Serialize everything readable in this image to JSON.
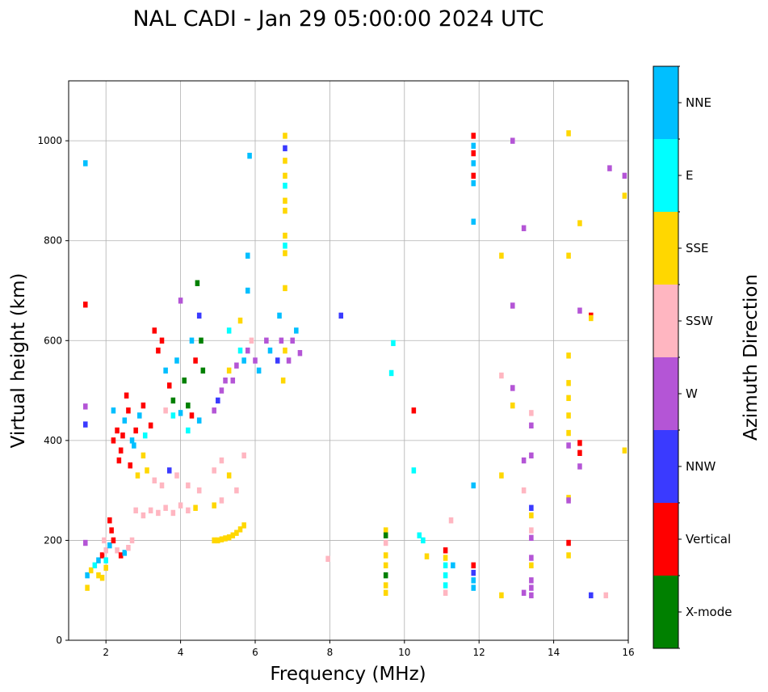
{
  "chart_data": {
    "type": "scatter",
    "title": "NAL CADI - Jan 29 05:00:00 2024 UTC",
    "xlabel": "Frequency (MHz)",
    "ylabel": "Virtual height (km)",
    "xlim": [
      1,
      16
    ],
    "ylim": [
      0,
      1120
    ],
    "xticks": [
      2,
      4,
      6,
      8,
      10,
      12,
      14,
      16
    ],
    "yticks": [
      0,
      200,
      400,
      600,
      800,
      1000
    ],
    "grid": true,
    "colorbar": {
      "label": "Azimuth Direction",
      "categories": [
        {
          "name": "X-mode",
          "color": "#008000"
        },
        {
          "name": "Vertical",
          "color": "#ff0000"
        },
        {
          "name": "NNW",
          "color": "#3a3aff"
        },
        {
          "name": "W",
          "color": "#b455d6"
        },
        {
          "name": "SSW",
          "color": "#ffb6c1"
        },
        {
          "name": "SSE",
          "color": "#ffd700"
        },
        {
          "name": "E",
          "color": "#00ffff"
        },
        {
          "name": "NNE",
          "color": "#00bfff"
        }
      ]
    },
    "points": [
      [
        1.45,
        672,
        "Vertical"
      ],
      [
        1.45,
        955,
        "NNE"
      ],
      [
        1.45,
        468,
        "W"
      ],
      [
        1.45,
        432,
        "NNW"
      ],
      [
        1.45,
        195,
        "W"
      ],
      [
        1.5,
        130,
        "NNE"
      ],
      [
        1.5,
        105,
        "SSE"
      ],
      [
        1.6,
        140,
        "SSE"
      ],
      [
        1.7,
        150,
        "E"
      ],
      [
        1.8,
        160,
        "NNE"
      ],
      [
        1.9,
        170,
        "Vertical"
      ],
      [
        2.0,
        180,
        "SSW"
      ],
      [
        2.0,
        145,
        "SSE"
      ],
      [
        2.1,
        190,
        "NNE"
      ],
      [
        2.2,
        200,
        "Vertical"
      ],
      [
        2.3,
        180,
        "SSW"
      ],
      [
        2.4,
        170,
        "Vertical"
      ],
      [
        2.5,
        175,
        "NNE"
      ],
      [
        2.6,
        185,
        "SSW"
      ],
      [
        2.1,
        240,
        "Vertical"
      ],
      [
        2.15,
        220,
        "Vertical"
      ],
      [
        1.8,
        130,
        "SSE"
      ],
      [
        1.9,
        125,
        "SSE"
      ],
      [
        2.0,
        160,
        "E"
      ],
      [
        1.95,
        200,
        "SSW"
      ],
      [
        2.2,
        400,
        "Vertical"
      ],
      [
        2.3,
        420,
        "Vertical"
      ],
      [
        2.4,
        380,
        "Vertical"
      ],
      [
        2.5,
        440,
        "NNE"
      ],
      [
        2.6,
        460,
        "Vertical"
      ],
      [
        2.7,
        400,
        "NNE"
      ],
      [
        2.8,
        420,
        "Vertical"
      ],
      [
        2.9,
        450,
        "NNE"
      ],
      [
        3.0,
        470,
        "Vertical"
      ],
      [
        2.2,
        460,
        "NNE"
      ],
      [
        2.35,
        360,
        "Vertical"
      ],
      [
        2.55,
        490,
        "Vertical"
      ],
      [
        2.65,
        350,
        "Vertical"
      ],
      [
        2.75,
        390,
        "NNE"
      ],
      [
        2.85,
        330,
        "SSE"
      ],
      [
        2.45,
        410,
        "Vertical"
      ],
      [
        3.05,
        410,
        "E"
      ],
      [
        3.2,
        430,
        "Vertical"
      ],
      [
        3.5,
        600,
        "Vertical"
      ],
      [
        3.6,
        540,
        "NNE"
      ],
      [
        3.7,
        510,
        "Vertical"
      ],
      [
        3.8,
        480,
        "X-mode"
      ],
      [
        3.9,
        560,
        "NNE"
      ],
      [
        4.0,
        680,
        "W"
      ],
      [
        4.1,
        520,
        "X-mode"
      ],
      [
        4.2,
        470,
        "X-mode"
      ],
      [
        4.3,
        600,
        "NNE"
      ],
      [
        4.4,
        560,
        "Vertical"
      ],
      [
        4.45,
        715,
        "X-mode"
      ],
      [
        4.5,
        650,
        "NNW"
      ],
      [
        4.55,
        600,
        "X-mode"
      ],
      [
        4.6,
        540,
        "X-mode"
      ],
      [
        3.4,
        580,
        "Vertical"
      ],
      [
        3.3,
        620,
        "Vertical"
      ],
      [
        3.6,
        460,
        "SSW"
      ],
      [
        3.8,
        450,
        "E"
      ],
      [
        4.0,
        455,
        "NNE"
      ],
      [
        4.3,
        450,
        "Vertical"
      ],
      [
        4.5,
        440,
        "NNE"
      ],
      [
        4.2,
        420,
        "E"
      ],
      [
        4.9,
        460,
        "W"
      ],
      [
        5.0,
        480,
        "NNW"
      ],
      [
        5.1,
        500,
        "W"
      ],
      [
        5.2,
        520,
        "W"
      ],
      [
        5.3,
        540,
        "SSE"
      ],
      [
        5.4,
        520,
        "W"
      ],
      [
        5.5,
        550,
        "W"
      ],
      [
        5.6,
        580,
        "E"
      ],
      [
        5.7,
        560,
        "NNE"
      ],
      [
        5.8,
        580,
        "W"
      ],
      [
        5.9,
        600,
        "SSW"
      ],
      [
        6.0,
        560,
        "W"
      ],
      [
        6.1,
        540,
        "NNE"
      ],
      [
        6.3,
        600,
        "W"
      ],
      [
        6.4,
        580,
        "NNE"
      ],
      [
        6.6,
        560,
        "NNW"
      ],
      [
        6.7,
        600,
        "W"
      ],
      [
        6.8,
        580,
        "SSE"
      ],
      [
        6.9,
        560,
        "W"
      ],
      [
        7.0,
        600,
        "W"
      ],
      [
        7.1,
        620,
        "NNE"
      ],
      [
        7.2,
        575,
        "W"
      ],
      [
        8.3,
        650,
        "NNW"
      ],
      [
        6.65,
        650,
        "NNE"
      ],
      [
        6.75,
        520,
        "SSE"
      ],
      [
        5.8,
        700,
        "NNE"
      ],
      [
        5.8,
        770,
        "NNE"
      ],
      [
        5.85,
        970,
        "NNE"
      ],
      [
        5.6,
        640,
        "SSE"
      ],
      [
        5.3,
        620,
        "E"
      ],
      [
        3.0,
        370,
        "SSE"
      ],
      [
        3.1,
        340,
        "SSE"
      ],
      [
        3.3,
        320,
        "SSW"
      ],
      [
        3.5,
        310,
        "SSW"
      ],
      [
        3.7,
        340,
        "NNW"
      ],
      [
        3.9,
        330,
        "SSW"
      ],
      [
        4.2,
        310,
        "SSW"
      ],
      [
        4.5,
        300,
        "SSW"
      ],
      [
        4.9,
        340,
        "SSW"
      ],
      [
        5.1,
        360,
        "SSW"
      ],
      [
        5.3,
        330,
        "SSE"
      ],
      [
        5.5,
        300,
        "SSW"
      ],
      [
        5.7,
        370,
        "SSW"
      ],
      [
        5.1,
        280,
        "SSW"
      ],
      [
        4.9,
        270,
        "SSE"
      ],
      [
        2.8,
        260,
        "SSW"
      ],
      [
        3.0,
        250,
        "SSW"
      ],
      [
        3.2,
        260,
        "SSW"
      ],
      [
        3.4,
        255,
        "SSW"
      ],
      [
        3.6,
        265,
        "SSW"
      ],
      [
        3.8,
        255,
        "SSW"
      ],
      [
        4.0,
        270,
        "SSW"
      ],
      [
        4.2,
        260,
        "SSW"
      ],
      [
        4.4,
        265,
        "SSE"
      ],
      [
        2.7,
        200,
        "SSW"
      ],
      [
        4.9,
        200,
        "SSE"
      ],
      [
        5.0,
        200,
        "SSE"
      ],
      [
        5.1,
        202,
        "SSE"
      ],
      [
        5.2,
        204,
        "SSE"
      ],
      [
        5.3,
        206,
        "SSE"
      ],
      [
        5.4,
        210,
        "SSE"
      ],
      [
        5.5,
        215,
        "SSE"
      ],
      [
        5.6,
        222,
        "SSE"
      ],
      [
        5.7,
        230,
        "SSE"
      ],
      [
        7.95,
        163,
        "SSW"
      ],
      [
        6.8,
        1010,
        "SSE"
      ],
      [
        6.8,
        985,
        "NNW"
      ],
      [
        6.8,
        960,
        "SSE"
      ],
      [
        6.8,
        930,
        "SSE"
      ],
      [
        6.8,
        910,
        "E"
      ],
      [
        6.8,
        880,
        "SSE"
      ],
      [
        6.8,
        860,
        "SSE"
      ],
      [
        6.8,
        810,
        "SSE"
      ],
      [
        6.8,
        790,
        "E"
      ],
      [
        6.8,
        775,
        "SSE"
      ],
      [
        6.8,
        705,
        "SSE"
      ],
      [
        9.5,
        220,
        "SSE"
      ],
      [
        9.5,
        210,
        "X-mode"
      ],
      [
        9.5,
        195,
        "SSW"
      ],
      [
        9.5,
        170,
        "SSE"
      ],
      [
        9.5,
        150,
        "SSE"
      ],
      [
        9.5,
        130,
        "X-mode"
      ],
      [
        9.5,
        110,
        "SSE"
      ],
      [
        9.5,
        95,
        "SSE"
      ],
      [
        9.7,
        595,
        "E"
      ],
      [
        9.65,
        535,
        "E"
      ],
      [
        10.25,
        460,
        "Vertical"
      ],
      [
        10.25,
        340,
        "E"
      ],
      [
        10.4,
        210,
        "E"
      ],
      [
        10.5,
        200,
        "E"
      ],
      [
        10.6,
        168,
        "SSE"
      ],
      [
        11.1,
        180,
        "Vertical"
      ],
      [
        11.1,
        165,
        "SSE"
      ],
      [
        11.1,
        150,
        "E"
      ],
      [
        11.1,
        130,
        "E"
      ],
      [
        11.1,
        110,
        "E"
      ],
      [
        11.1,
        95,
        "SSW"
      ],
      [
        11.25,
        240,
        "SSW"
      ],
      [
        11.3,
        150,
        "NNE"
      ],
      [
        11.85,
        1010,
        "Vertical"
      ],
      [
        11.85,
        990,
        "NNE"
      ],
      [
        11.85,
        975,
        "Vertical"
      ],
      [
        11.85,
        955,
        "NNE"
      ],
      [
        11.85,
        930,
        "Vertical"
      ],
      [
        11.85,
        915,
        "NNE"
      ],
      [
        11.85,
        838,
        "NNE"
      ],
      [
        11.85,
        310,
        "NNE"
      ],
      [
        11.85,
        150,
        "Vertical"
      ],
      [
        11.85,
        135,
        "NNW"
      ],
      [
        11.85,
        120,
        "NNE"
      ],
      [
        11.85,
        105,
        "NNE"
      ],
      [
        12.6,
        770,
        "SSE"
      ],
      [
        12.6,
        530,
        "SSW"
      ],
      [
        12.6,
        330,
        "SSE"
      ],
      [
        12.6,
        90,
        "SSE"
      ],
      [
        12.9,
        1000,
        "W"
      ],
      [
        12.9,
        670,
        "W"
      ],
      [
        12.9,
        505,
        "W"
      ],
      [
        12.9,
        470,
        "SSE"
      ],
      [
        13.2,
        825,
        "W"
      ],
      [
        13.2,
        360,
        "W"
      ],
      [
        13.2,
        300,
        "SSW"
      ],
      [
        13.2,
        95,
        "W"
      ],
      [
        13.4,
        455,
        "SSW"
      ],
      [
        13.4,
        430,
        "W"
      ],
      [
        13.4,
        370,
        "W"
      ],
      [
        13.4,
        265,
        "NNW"
      ],
      [
        13.4,
        250,
        "SSE"
      ],
      [
        13.4,
        220,
        "SSW"
      ],
      [
        13.4,
        205,
        "W"
      ],
      [
        13.4,
        165,
        "W"
      ],
      [
        13.4,
        150,
        "SSE"
      ],
      [
        13.4,
        120,
        "W"
      ],
      [
        13.4,
        105,
        "W"
      ],
      [
        13.4,
        90,
        "W"
      ],
      [
        14.4,
        1015,
        "SSE"
      ],
      [
        14.4,
        770,
        "SSE"
      ],
      [
        14.4,
        570,
        "SSE"
      ],
      [
        14.4,
        515,
        "SSE"
      ],
      [
        14.4,
        485,
        "SSE"
      ],
      [
        14.4,
        450,
        "SSE"
      ],
      [
        14.4,
        415,
        "SSE"
      ],
      [
        14.4,
        390,
        "W"
      ],
      [
        14.4,
        285,
        "SSE"
      ],
      [
        14.4,
        280,
        "W"
      ],
      [
        14.4,
        195,
        "Vertical"
      ],
      [
        14.4,
        170,
        "SSE"
      ],
      [
        14.7,
        835,
        "SSE"
      ],
      [
        14.7,
        660,
        "W"
      ],
      [
        14.7,
        395,
        "Vertical"
      ],
      [
        14.7,
        375,
        "Vertical"
      ],
      [
        14.7,
        348,
        "W"
      ],
      [
        15.0,
        650,
        "Vertical"
      ],
      [
        15.0,
        645,
        "SSE"
      ],
      [
        15.0,
        90,
        "NNW"
      ],
      [
        15.4,
        90,
        "SSW"
      ],
      [
        15.5,
        945,
        "W"
      ],
      [
        15.9,
        930,
        "W"
      ],
      [
        15.9,
        890,
        "SSE"
      ],
      [
        15.9,
        380,
        "SSE"
      ]
    ]
  }
}
